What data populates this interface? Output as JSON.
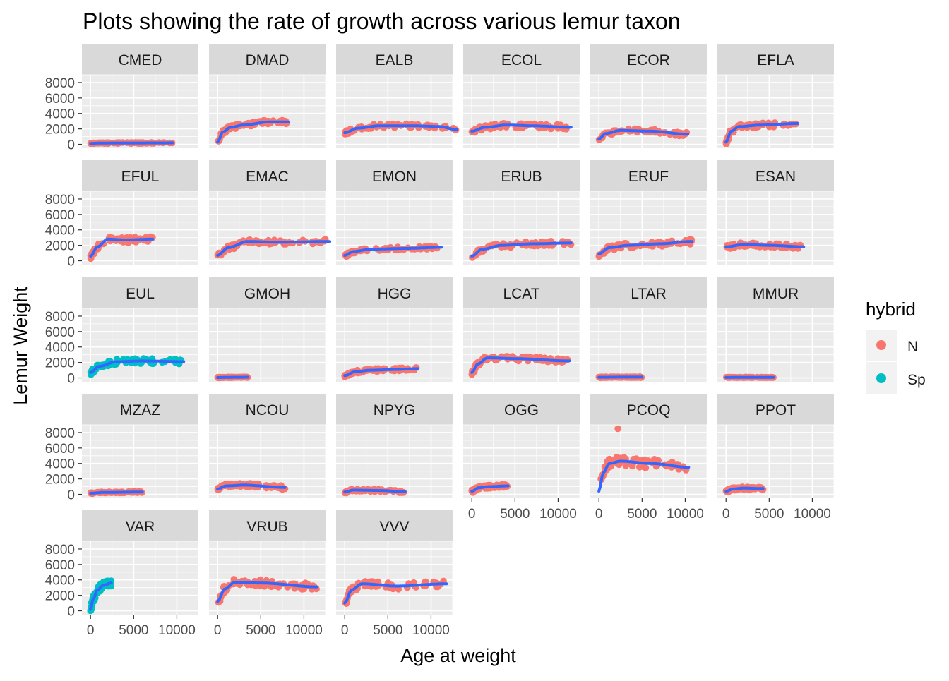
{
  "chart_data": {
    "type": "scatter",
    "title": "Plots showing the rate of growth across various lemur taxon",
    "xlabel": "Age at weight",
    "ylabel": "Lemur Weight",
    "xlim": [
      -1000,
      12500
    ],
    "ylim": [
      -500,
      9000
    ],
    "x_ticks": [
      0,
      5000,
      10000
    ],
    "x_tick_labels": [
      "0",
      "5000",
      "10000"
    ],
    "y_ticks": [
      0,
      2000,
      4000,
      6000,
      8000
    ],
    "y_tick_labels": [
      "0",
      "2000",
      "4000",
      "6000",
      "8000"
    ],
    "grid": true,
    "legend": {
      "title": "hybrid",
      "position": "right",
      "entries": [
        {
          "label": "N",
          "color": "#F8766D"
        },
        {
          "label": "Sp",
          "color": "#00BFC4"
        }
      ]
    },
    "smooth_color": "#3366FF",
    "panel_color": "#EBEBEB",
    "strip_color": "#D9D9D9",
    "series": [
      {
        "name": "CMED",
        "hybrid": "N",
        "xmax": 9500,
        "smooth": [
          [
            0,
            120
          ],
          [
            1000,
            160
          ],
          [
            3000,
            180
          ],
          [
            6000,
            180
          ],
          [
            9500,
            190
          ]
        ],
        "spread": 60
      },
      {
        "name": "DMAD",
        "hybrid": "N",
        "xmax": 8200,
        "smooth": [
          [
            0,
            300
          ],
          [
            600,
            1600
          ],
          [
            1500,
            2200
          ],
          [
            3000,
            2500
          ],
          [
            6000,
            2900
          ],
          [
            8200,
            2900
          ]
        ],
        "spread": 250
      },
      {
        "name": "EALB",
        "hybrid": "N",
        "xmax": 13000,
        "smooth": [
          [
            0,
            1500
          ],
          [
            1500,
            2100
          ],
          [
            4000,
            2400
          ],
          [
            8000,
            2400
          ],
          [
            11000,
            2300
          ],
          [
            13000,
            1900
          ]
        ],
        "spread": 250
      },
      {
        "name": "ECOL",
        "hybrid": "N",
        "xmax": 11500,
        "smooth": [
          [
            0,
            1700
          ],
          [
            1500,
            2200
          ],
          [
            4000,
            2500
          ],
          [
            7000,
            2400
          ],
          [
            11500,
            2200
          ]
        ],
        "spread": 300
      },
      {
        "name": "ECOR",
        "hybrid": "N",
        "xmax": 10300,
        "smooth": [
          [
            0,
            700
          ],
          [
            800,
            1400
          ],
          [
            2500,
            1800
          ],
          [
            6000,
            1700
          ],
          [
            10300,
            1300
          ]
        ],
        "spread": 250
      },
      {
        "name": "EFLA",
        "hybrid": "N",
        "xmax": 8300,
        "smooth": [
          [
            0,
            300
          ],
          [
            600,
            1700
          ],
          [
            1500,
            2300
          ],
          [
            4000,
            2500
          ],
          [
            8300,
            2700
          ]
        ],
        "spread": 300
      },
      {
        "name": "EFUL",
        "hybrid": "N",
        "xmax": 7200,
        "smooth": [
          [
            0,
            600
          ],
          [
            800,
            1800
          ],
          [
            2000,
            2800
          ],
          [
            4000,
            2700
          ],
          [
            7200,
            2800
          ]
        ],
        "spread": 350
      },
      {
        "name": "EMAC",
        "hybrid": "N",
        "xmax": 13000,
        "smooth": [
          [
            0,
            700
          ],
          [
            1200,
            1700
          ],
          [
            3500,
            2500
          ],
          [
            7000,
            2400
          ],
          [
            13000,
            2500
          ]
        ],
        "spread": 300
      },
      {
        "name": "EMON",
        "hybrid": "N",
        "xmax": 11200,
        "smooth": [
          [
            0,
            700
          ],
          [
            1000,
            1200
          ],
          [
            3000,
            1500
          ],
          [
            7000,
            1600
          ],
          [
            11200,
            1750
          ]
        ],
        "spread": 200
      },
      {
        "name": "ERUB",
        "hybrid": "N",
        "xmax": 11500,
        "smooth": [
          [
            0,
            600
          ],
          [
            1200,
            1500
          ],
          [
            3500,
            2000
          ],
          [
            7000,
            2200
          ],
          [
            11500,
            2300
          ]
        ],
        "spread": 300
      },
      {
        "name": "ERUF",
        "hybrid": "N",
        "xmax": 10800,
        "smooth": [
          [
            0,
            900
          ],
          [
            1200,
            1700
          ],
          [
            3500,
            2000
          ],
          [
            7000,
            2200
          ],
          [
            10800,
            2500
          ]
        ],
        "spread": 350
      },
      {
        "name": "ESAN",
        "hybrid": "N",
        "xmax": 9000,
        "smooth": [
          [
            0,
            1800
          ],
          [
            2000,
            2100
          ],
          [
            5000,
            2000
          ],
          [
            9000,
            1800
          ]
        ],
        "spread": 250
      },
      {
        "name": "EUL",
        "hybrid": "Sp",
        "xmax": 10800,
        "smooth": [
          [
            0,
            700
          ],
          [
            1000,
            1500
          ],
          [
            3000,
            2100
          ],
          [
            6000,
            2200
          ],
          [
            10800,
            2100
          ]
        ],
        "spread": 350
      },
      {
        "name": "GMOH",
        "hybrid": "N",
        "xmax": 3500,
        "smooth": [
          [
            0,
            50
          ],
          [
            1500,
            80
          ],
          [
            3500,
            90
          ]
        ],
        "spread": 40
      },
      {
        "name": "HGG",
        "hybrid": "N",
        "xmax": 8500,
        "smooth": [
          [
            0,
            300
          ],
          [
            1200,
            800
          ],
          [
            3000,
            1000
          ],
          [
            6000,
            1100
          ],
          [
            8500,
            1200
          ]
        ],
        "spread": 200
      },
      {
        "name": "LCAT",
        "hybrid": "N",
        "xmax": 11300,
        "smooth": [
          [
            0,
            700
          ],
          [
            700,
            1800
          ],
          [
            1800,
            2600
          ],
          [
            5000,
            2500
          ],
          [
            11300,
            2200
          ]
        ],
        "spread": 300
      },
      {
        "name": "LTAR",
        "hybrid": "N",
        "xmax": 5000,
        "smooth": [
          [
            0,
            80
          ],
          [
            2500,
            100
          ],
          [
            5000,
            100
          ]
        ],
        "spread": 50
      },
      {
        "name": "MMUR",
        "hybrid": "N",
        "xmax": 5500,
        "smooth": [
          [
            0,
            60
          ],
          [
            2500,
            70
          ],
          [
            5500,
            70
          ]
        ],
        "spread": 30
      },
      {
        "name": "MZAZ",
        "hybrid": "N",
        "xmax": 6000,
        "smooth": [
          [
            0,
            150
          ],
          [
            1500,
            250
          ],
          [
            6000,
            300
          ]
        ],
        "spread": 80
      },
      {
        "name": "NCOU",
        "hybrid": "N",
        "xmax": 7800,
        "smooth": [
          [
            0,
            700
          ],
          [
            1000,
            1100
          ],
          [
            3000,
            1200
          ],
          [
            7800,
            900
          ]
        ],
        "spread": 250
      },
      {
        "name": "NPYG",
        "hybrid": "N",
        "xmax": 7000,
        "smooth": [
          [
            0,
            300
          ],
          [
            1000,
            550
          ],
          [
            4000,
            500
          ],
          [
            7000,
            350
          ]
        ],
        "spread": 150
      },
      {
        "name": "OGG",
        "hybrid": "N",
        "xmax": 4200,
        "smooth": [
          [
            0,
            400
          ],
          [
            800,
            850
          ],
          [
            2000,
            1000
          ],
          [
            4200,
            1100
          ]
        ],
        "spread": 200
      },
      {
        "name": "PCOQ",
        "hybrid": "N",
        "xmax": 10400,
        "smooth": [
          [
            0,
            400
          ],
          [
            500,
            2800
          ],
          [
            1200,
            4000
          ],
          [
            2500,
            4300
          ],
          [
            6000,
            4000
          ],
          [
            10400,
            3500
          ]
        ],
        "spread": 600
      },
      {
        "name": "PPOT",
        "hybrid": "N",
        "xmax": 4300,
        "smooth": [
          [
            0,
            400
          ],
          [
            800,
            700
          ],
          [
            2000,
            800
          ],
          [
            4300,
            750
          ]
        ],
        "spread": 180
      },
      {
        "name": "VAR",
        "hybrid": "Sp",
        "xmax": 2400,
        "smooth": [
          [
            0,
            200
          ],
          [
            300,
            1500
          ],
          [
            800,
            2700
          ],
          [
            1500,
            3300
          ],
          [
            2400,
            3600
          ]
        ],
        "spread": 450
      },
      {
        "name": "VRUB",
        "hybrid": "N",
        "xmax": 11500,
        "smooth": [
          [
            0,
            1200
          ],
          [
            800,
            2800
          ],
          [
            2000,
            3700
          ],
          [
            5000,
            3600
          ],
          [
            11500,
            3100
          ]
        ],
        "spread": 450
      },
      {
        "name": "VVV",
        "hybrid": "N",
        "xmax": 11800,
        "smooth": [
          [
            0,
            1000
          ],
          [
            800,
            2700
          ],
          [
            2000,
            3500
          ],
          [
            6000,
            3200
          ],
          [
            11800,
            3500
          ]
        ],
        "spread": 400
      }
    ]
  }
}
